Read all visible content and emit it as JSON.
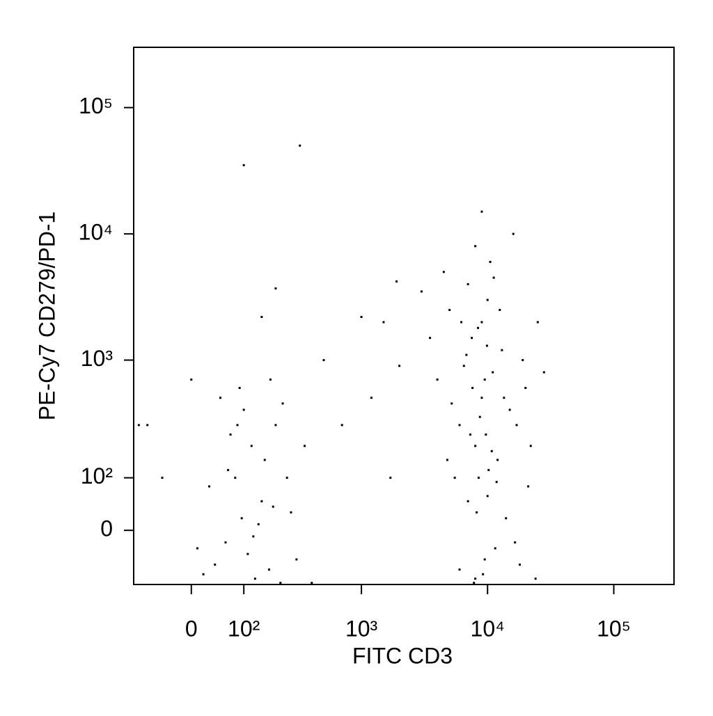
{
  "chart_data": {
    "type": "scatter",
    "x_label": "FITC CD3",
    "y_label": "PE-Cy7 CD279/PD-1",
    "xscale": "biexponential",
    "yscale": "biexponential",
    "xlim": [
      -113,
      300000
    ],
    "ylim": [
      -104,
      300000
    ],
    "xticks": [
      0,
      {
        "value": 100,
        "label": "10²"
      },
      {
        "value": 1000,
        "label": "10³"
      },
      {
        "value": 10000,
        "label": "10⁴"
      },
      {
        "value": 100000,
        "label": "10⁵"
      }
    ],
    "yticks": [
      0,
      {
        "value": 100,
        "label": "10²"
      },
      {
        "value": 1000,
        "label": "10³"
      },
      {
        "value": 10000,
        "label": "10⁴"
      },
      {
        "value": 100000,
        "label": "10⁵"
      }
    ],
    "color": "#000000",
    "x": [
      8000,
      9000,
      7500,
      10000,
      8500,
      7000,
      9500,
      11000,
      6000,
      12000,
      8000,
      9000,
      7000,
      10500,
      13000,
      6500,
      15000,
      5000,
      8000,
      9000,
      4500,
      16000,
      20000,
      22000,
      25000,
      28000,
      5500,
      7800,
      8200,
      9200,
      10000,
      11500,
      14000,
      18000,
      6000,
      4000,
      3500,
      3000,
      12500,
      9500,
      8700,
      7300,
      10800,
      11800,
      6800,
      9900,
      13500,
      17000,
      19000,
      21000,
      5200,
      4800,
      7600,
      8400,
      9700,
      10200,
      16500,
      24000,
      6200,
      11200,
      80,
      120,
      150,
      60,
      100,
      200,
      40,
      180,
      90,
      130,
      70,
      250,
      300,
      30,
      50,
      160,
      110,
      220,
      140,
      20,
      190,
      85,
      65,
      230,
      10,
      350,
      400,
      -50,
      -80,
      0,
      270,
      175,
      95,
      125,
      100,
      320,
      200,
      150,
      500,
      1000,
      1500,
      1900,
      2000,
      700,
      1200,
      -100,
      1700
    ],
    "y": [
      200,
      500,
      1500,
      3000,
      100,
      50,
      -50,
      800,
      300,
      150,
      -90,
      2000,
      4000,
      6000,
      1200,
      900,
      400,
      2500,
      8000,
      15000,
      5000,
      10000,
      600,
      200,
      2000,
      800,
      100,
      -100,
      30,
      -80,
      60,
      -30,
      20,
      -60,
      -70,
      700,
      1500,
      3500,
      2500,
      700,
      350,
      250,
      180,
      90,
      1100,
      1300,
      500,
      300,
      1000,
      80,
      450,
      150,
      600,
      1800,
      250,
      120,
      -20,
      -90,
      2000,
      4500,
      100,
      200,
      50,
      -20,
      400,
      300,
      -60,
      700,
      600,
      -90,
      250,
      100,
      -50,
      80,
      500,
      150,
      -40,
      -100,
      10,
      -80,
      40,
      300,
      120,
      450,
      -30,
      200,
      -100,
      100,
      300,
      700,
      30,
      -70,
      20,
      -10,
      35000,
      50000,
      3700,
      2200,
      1000,
      2200,
      2000,
      4200,
      900,
      300,
      500,
      300,
      100
    ]
  }
}
